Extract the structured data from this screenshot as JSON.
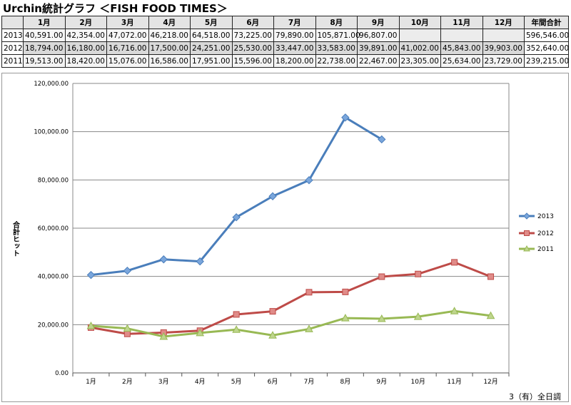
{
  "title": "Urchin統計グラフ ＜FISH FOOD TIMES＞",
  "table": {
    "headers": [
      "",
      "1月",
      "2月",
      "3月",
      "4月",
      "5月",
      "6月",
      "7月",
      "8月",
      "9月",
      "10月",
      "11月",
      "12月",
      "年間合計"
    ],
    "rows": [
      {
        "year": "2013",
        "cells": [
          "40,591.00",
          "42,354.00",
          "47,072.00",
          "46,218.00",
          "64,518.00",
          "73,225.00",
          "79,890.00",
          "105,871.00",
          "96,807.00",
          "",
          "",
          ""
        ],
        "total": "596,546.00"
      },
      {
        "year": "2012",
        "cells": [
          "18,794.00",
          "16,180.00",
          "16,716.00",
          "17,500.00",
          "24,251.00",
          "25,530.00",
          "33,447.00",
          "33,583.00",
          "39,891.00",
          "41,002.00",
          "45,843.00",
          "39,903.00"
        ],
        "total": "352,640.00"
      },
      {
        "year": "2011",
        "cells": [
          "19,513.00",
          "18,420.00",
          "15,076.00",
          "16,586.00",
          "17,951.00",
          "15,596.00",
          "18,200.00",
          "22,738.00",
          "22,467.00",
          "23,305.00",
          "25,634.00",
          "23,729.00"
        ],
        "total": "239,215.00"
      }
    ]
  },
  "chart_data": {
    "type": "line",
    "categories": [
      "1月",
      "2月",
      "3月",
      "4月",
      "5月",
      "6月",
      "7月",
      "8月",
      "9月",
      "10月",
      "11月",
      "12月"
    ],
    "ylabel": "合計ヒット",
    "ylim": [
      0,
      120000
    ],
    "yticks": [
      0,
      20000,
      40000,
      60000,
      80000,
      100000,
      120000
    ],
    "ytick_labels": [
      "0.00",
      "20,000.00",
      "40,000.00",
      "60,000.00",
      "80,000.00",
      "100,000.00",
      "120,000.00"
    ],
    "grid": true,
    "legend": "right",
    "series": [
      {
        "name": "2013",
        "color": "#4a7ebb",
        "marker": "diamond",
        "values": [
          40591,
          42354,
          47072,
          46218,
          64518,
          73225,
          79890,
          105871,
          96807,
          null,
          null,
          null
        ]
      },
      {
        "name": "2012",
        "color": "#be4b48",
        "marker": "square",
        "values": [
          18794,
          16180,
          16716,
          17500,
          24251,
          25530,
          33447,
          33583,
          39891,
          41002,
          45843,
          39903
        ]
      },
      {
        "name": "2011",
        "color": "#98b954",
        "marker": "triangle",
        "values": [
          19513,
          18420,
          15076,
          16586,
          17951,
          15596,
          18200,
          22738,
          22467,
          23305,
          25634,
          23729
        ]
      }
    ]
  },
  "footer": "3（有）全日調"
}
